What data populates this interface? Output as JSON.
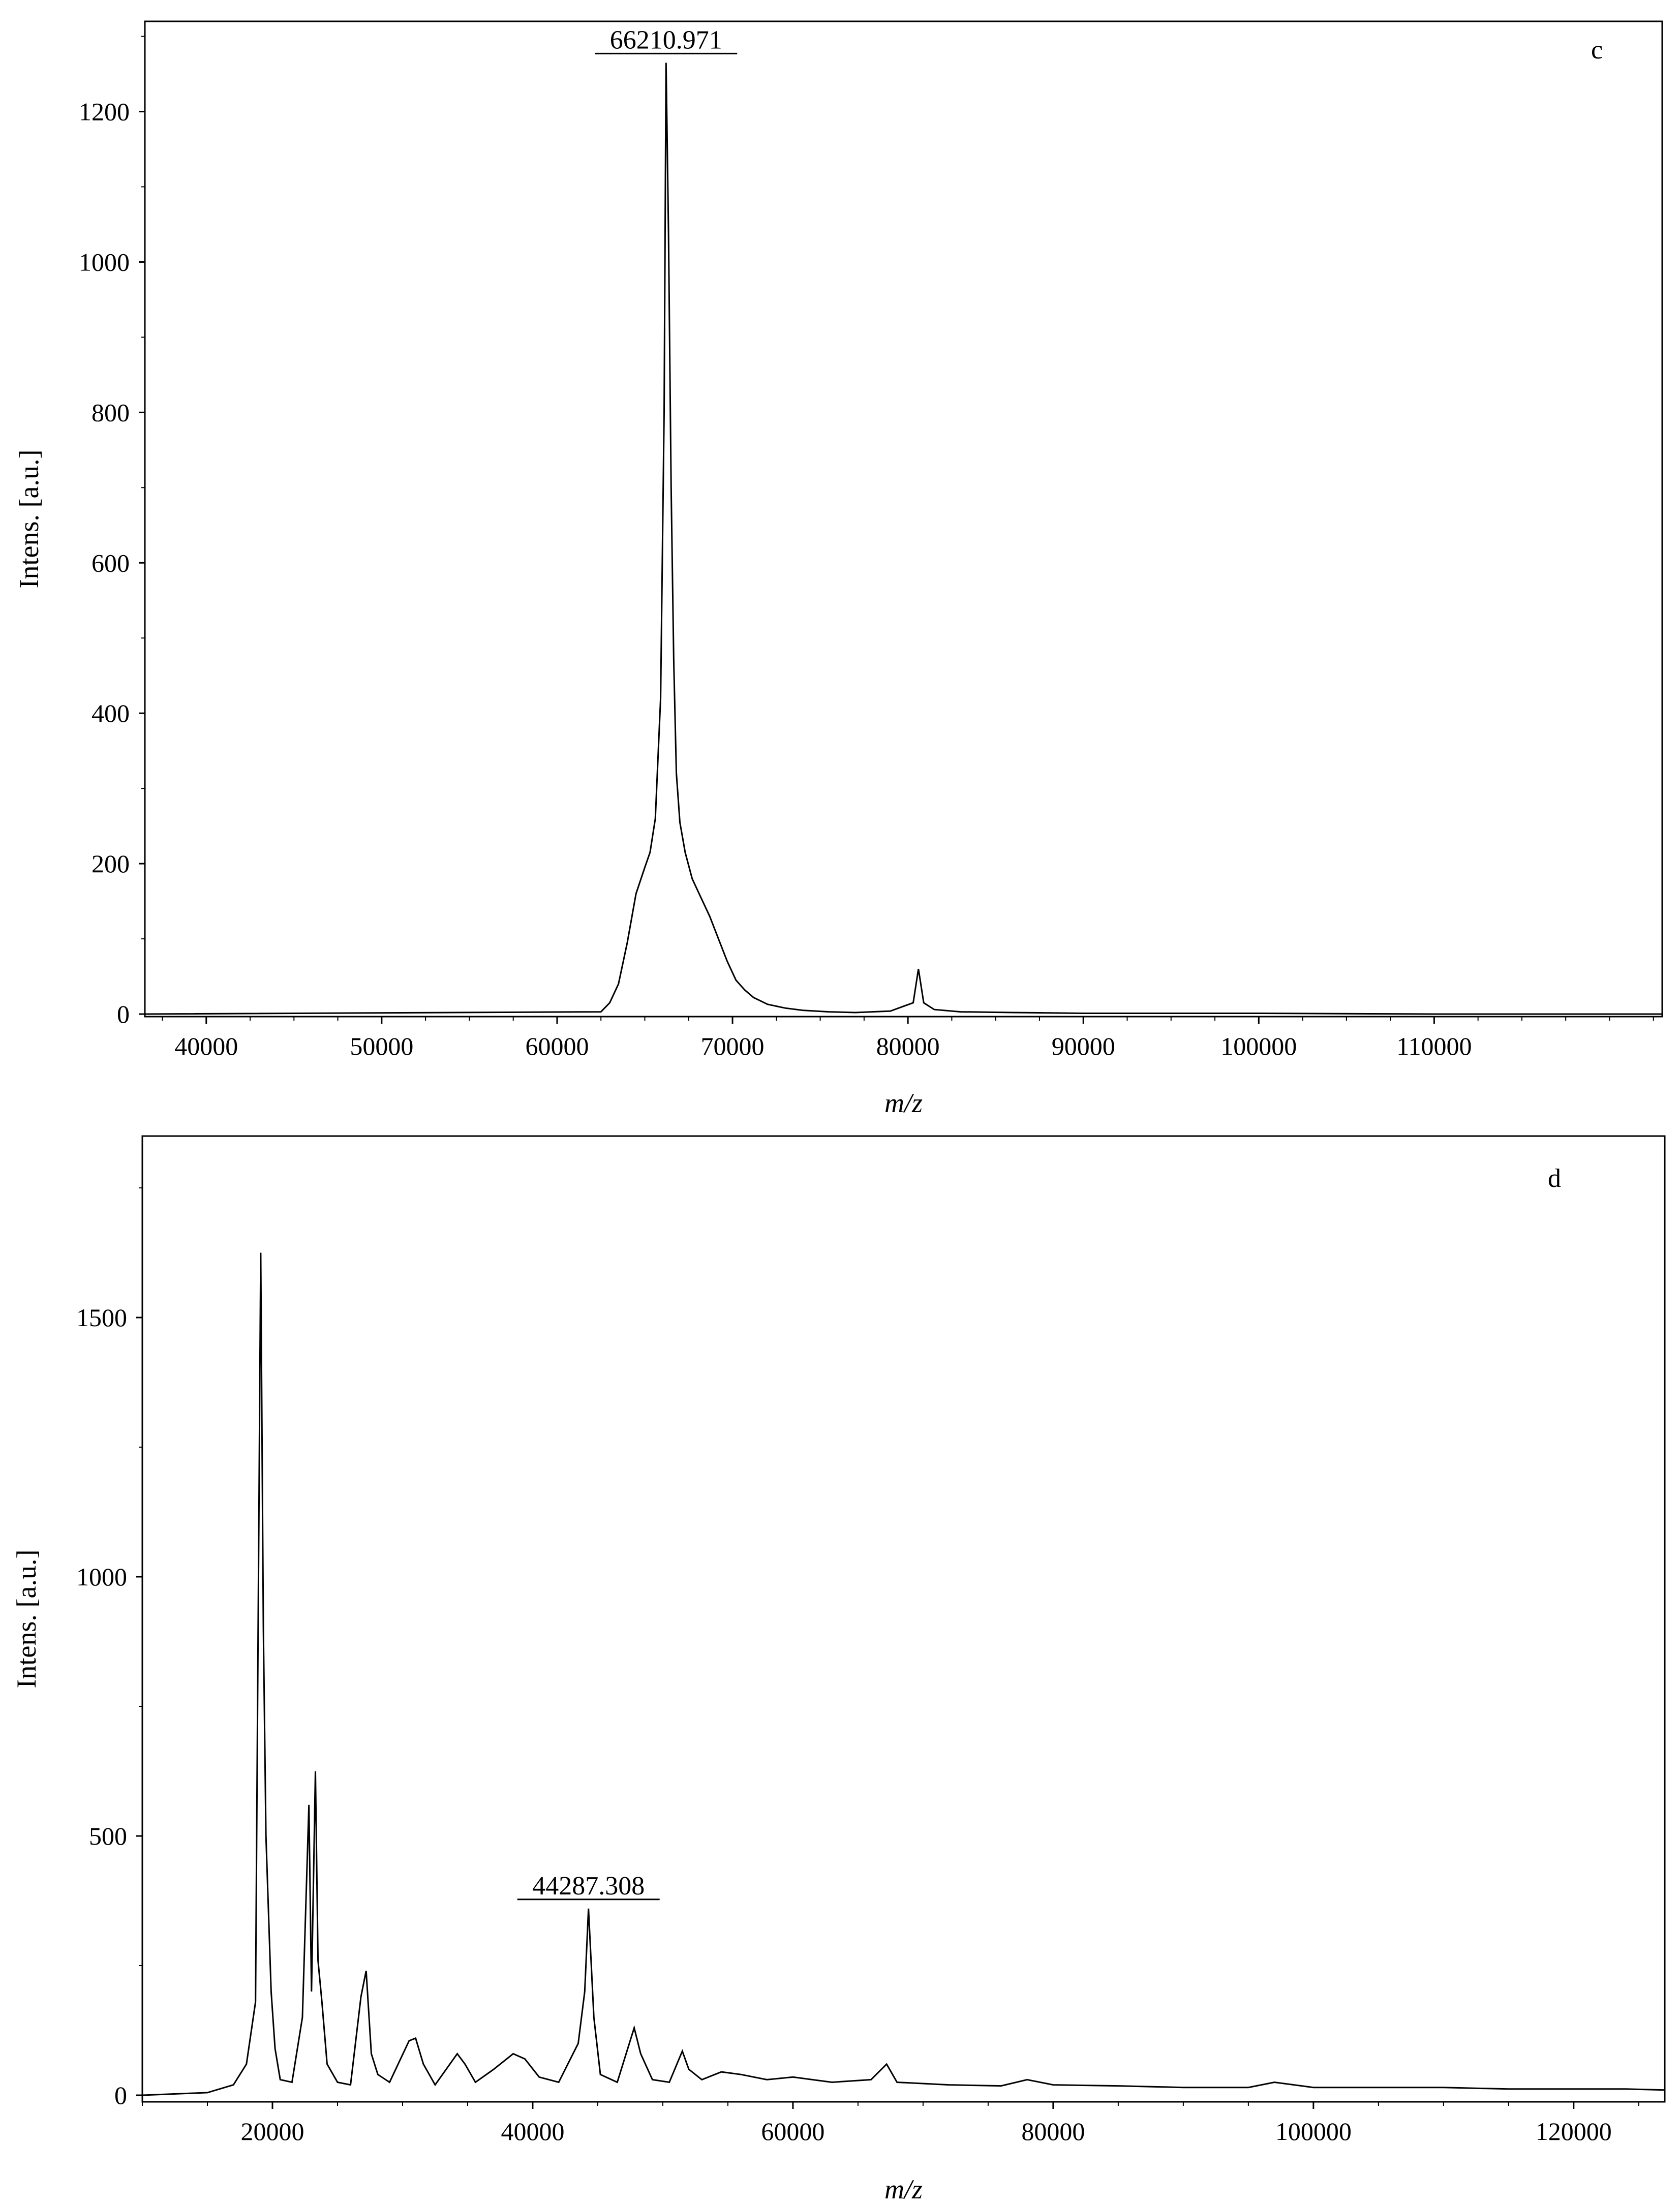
{
  "chart_data": [
    {
      "type": "line",
      "panel": "c",
      "xlabel": "m/z",
      "ylabel": "Intens. [a.u.]",
      "xlim": [
        36500,
        123000
      ],
      "ylim": [
        0,
        1320
      ],
      "x_ticks": [
        40000,
        50000,
        60000,
        70000,
        80000,
        90000,
        100000,
        110000
      ],
      "x_tick_labels": [
        "40000",
        "50000",
        "60000",
        "70000",
        "80000",
        "90000",
        "100000",
        "110000"
      ],
      "y_ticks": [
        0,
        200,
        400,
        600,
        800,
        1000,
        1200
      ],
      "y_tick_labels": [
        "0",
        "200",
        "400",
        "600",
        "800",
        "1000",
        "1200"
      ],
      "annotation": {
        "text": "66210.971",
        "x": 66210.971,
        "y": 1265
      },
      "series": [
        {
          "x": [
            36500,
            62500,
            63000,
            63500,
            64000,
            64500,
            65000,
            65300,
            65600,
            65900,
            66100,
            66210.971,
            66350,
            66500,
            66650,
            66800,
            67000,
            67300,
            67700,
            68200,
            68700,
            69200,
            69700,
            70200,
            70700,
            71200,
            72000,
            73000,
            74000,
            75500,
            77000,
            79000,
            80300,
            80600,
            80900,
            81500,
            83000,
            86000,
            90000,
            95000,
            100000,
            110000,
            123000
          ],
          "y": [
            0,
            3,
            15,
            40,
            95,
            160,
            195,
            215,
            260,
            420,
            800,
            1265,
            1040,
            700,
            470,
            320,
            255,
            215,
            180,
            155,
            130,
            100,
            70,
            45,
            32,
            22,
            13,
            8,
            5,
            3,
            2,
            4,
            15,
            60,
            15,
            6,
            3,
            2,
            1,
            1,
            1,
            0,
            0
          ]
        }
      ]
    },
    {
      "type": "line",
      "panel": "d",
      "xlabel": "m/z",
      "ylabel": "Intens. [a.u.]",
      "xlim": [
        10000,
        127000
      ],
      "ylim": [
        0,
        1850
      ],
      "x_ticks": [
        20000,
        40000,
        60000,
        80000,
        100000,
        120000
      ],
      "x_tick_labels": [
        "20000",
        "40000",
        "60000",
        "80000",
        "100000",
        "120000"
      ],
      "y_ticks": [
        0,
        500,
        1000,
        1500
      ],
      "y_tick_labels": [
        "0",
        "500",
        "1000",
        "1500"
      ],
      "annotation": {
        "text": "44287.308",
        "x": 44287.308,
        "y": 360
      },
      "series": [
        {
          "x": [
            10000,
            15000,
            17000,
            18000,
            18700,
            19100,
            19300,
            19500,
            19700,
            19900,
            20200,
            20600,
            21500,
            22300,
            22800,
            23000,
            23300,
            23500,
            23800,
            24200,
            25000,
            26000,
            26800,
            27200,
            27600,
            28100,
            29000,
            30500,
            31000,
            31600,
            32500,
            34200,
            34800,
            35600,
            37000,
            38500,
            39400,
            40500,
            42000,
            43500,
            44000,
            44287.308,
            44700,
            45200,
            46500,
            47800,
            48300,
            49200,
            50500,
            51500,
            52000,
            53000,
            54500,
            56000,
            58000,
            60000,
            63000,
            66000,
            67200,
            68000,
            72000,
            76000,
            78000,
            80000,
            85000,
            90000,
            95000,
            97000,
            100000,
            105000,
            110000,
            115000,
            120000,
            124000,
            127000
          ],
          "y": [
            0,
            5,
            20,
            60,
            180,
            1625,
            900,
            500,
            350,
            200,
            90,
            30,
            25,
            150,
            560,
            200,
            625,
            260,
            180,
            60,
            25,
            20,
            190,
            240,
            80,
            40,
            25,
            105,
            110,
            60,
            20,
            80,
            60,
            25,
            50,
            80,
            70,
            35,
            25,
            100,
            200,
            360,
            150,
            40,
            25,
            130,
            80,
            30,
            25,
            85,
            50,
            30,
            45,
            40,
            30,
            35,
            25,
            30,
            60,
            25,
            20,
            18,
            30,
            20,
            18,
            15,
            15,
            25,
            15,
            15,
            15,
            12,
            12,
            12,
            10
          ]
        }
      ]
    }
  ]
}
